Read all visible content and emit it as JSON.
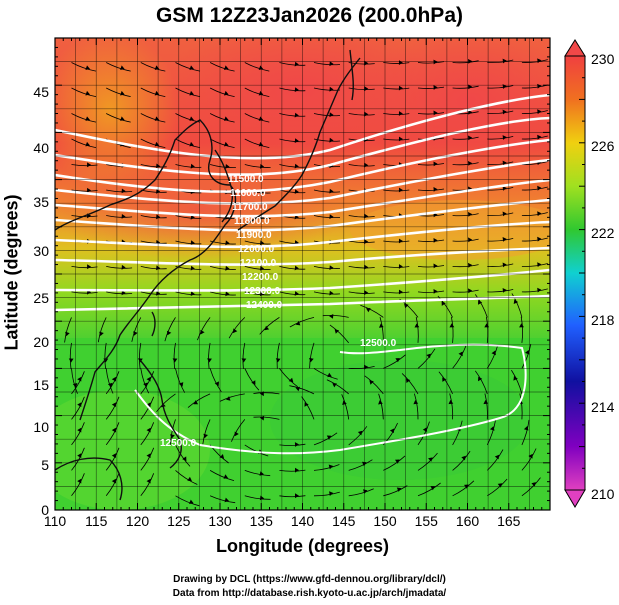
{
  "title": "GSM 12Z23Jan2026 (200.0hPa)",
  "axes": {
    "xlabel": "Longitude (degrees)",
    "ylabel": "Latitude  (degrees)",
    "xticks": [
      "110",
      "115",
      "120",
      "125",
      "130",
      "135",
      "140",
      "145",
      "150",
      "155",
      "160",
      "165"
    ],
    "yticks": [
      "0",
      "5",
      "10",
      "15",
      "20",
      "25",
      "30",
      "35",
      "40",
      "45"
    ],
    "xlim": [
      110,
      170
    ],
    "ylim": [
      0,
      50
    ]
  },
  "colorbar": {
    "ticks": [
      "210",
      "214",
      "218",
      "222",
      "226",
      "230"
    ],
    "range": [
      210,
      230
    ]
  },
  "contour_labels": [
    "11500.0",
    "11600.0",
    "11700.0",
    "11800.0",
    "11900.0",
    "12000.0",
    "12100.0",
    "12200.0",
    "12300.0",
    "12400.0",
    "12500.0",
    "12500.0"
  ],
  "credits": {
    "line1": "Drawing by DCL (https://www.gfd-dennou.org/library/dcl/)",
    "line2": "Data from http://database.rish.kyoto-u.ac.jp/arch/jmadata/"
  },
  "chart_data": {
    "type": "heatmap",
    "title": "GSM 12Z23Jan2026 (200.0hPa)",
    "xlabel": "Longitude (degrees)",
    "ylabel": "Latitude  (degrees)",
    "xlim": [
      110,
      170
    ],
    "ylim": [
      0,
      50
    ],
    "colorbar_range": [
      210,
      230
    ],
    "grid": true,
    "contour_levels": [
      11500,
      11600,
      11700,
      11800,
      11900,
      12000,
      12100,
      12200,
      12300,
      12400,
      12500
    ]
  }
}
